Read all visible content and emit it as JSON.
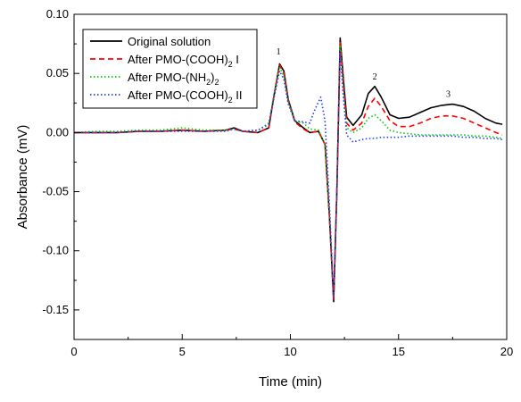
{
  "chart_data": {
    "type": "line",
    "xlabel": "Time (min)",
    "ylabel": "Absorbance (mV)",
    "xlim": [
      0,
      20
    ],
    "ylim": [
      -0.175,
      0.1
    ],
    "x_ticks": [
      0,
      5,
      10,
      15,
      20
    ],
    "x_tick_labels": [
      "0",
      "5",
      "10",
      "15",
      "20"
    ],
    "y_ticks": [
      0.1,
      0.05,
      0.0,
      -0.05,
      -0.1,
      -0.15
    ],
    "y_tick_labels": [
      "0.10",
      "0.05",
      "0.00",
      "-0.05",
      "-0.10",
      "-0.15"
    ],
    "grid": false,
    "legend_position": "top-left",
    "series": [
      {
        "name_parts": [
          "Original solution"
        ],
        "color": "#000000",
        "style": "solid",
        "points": [
          [
            0,
            0.0
          ],
          [
            1.0,
            0.0
          ],
          [
            2.0,
            0.0
          ],
          [
            3.0,
            0.001
          ],
          [
            4.0,
            0.001
          ],
          [
            5.0,
            0.002
          ],
          [
            6.0,
            0.001
          ],
          [
            7.0,
            0.002
          ],
          [
            7.4,
            0.004
          ],
          [
            7.8,
            0.001
          ],
          [
            8.5,
            0.0
          ],
          [
            9.0,
            0.004
          ],
          [
            9.25,
            0.032
          ],
          [
            9.5,
            0.058
          ],
          [
            9.7,
            0.052
          ],
          [
            9.9,
            0.028
          ],
          [
            10.2,
            0.01
          ],
          [
            10.6,
            0.004
          ],
          [
            10.9,
            0.0
          ],
          [
            11.3,
            0.001
          ],
          [
            11.6,
            -0.01
          ],
          [
            11.8,
            -0.07
          ],
          [
            12.0,
            -0.143
          ],
          [
            12.15,
            -0.05
          ],
          [
            12.3,
            0.08
          ],
          [
            12.45,
            0.045
          ],
          [
            12.6,
            0.013
          ],
          [
            12.9,
            0.006
          ],
          [
            13.3,
            0.015
          ],
          [
            13.6,
            0.033
          ],
          [
            13.9,
            0.039
          ],
          [
            14.2,
            0.03
          ],
          [
            14.6,
            0.015
          ],
          [
            15.0,
            0.012
          ],
          [
            15.5,
            0.013
          ],
          [
            16.0,
            0.017
          ],
          [
            16.5,
            0.021
          ],
          [
            17.0,
            0.023
          ],
          [
            17.5,
            0.024
          ],
          [
            18.0,
            0.022
          ],
          [
            18.5,
            0.018
          ],
          [
            19.0,
            0.012
          ],
          [
            19.5,
            0.008
          ],
          [
            19.8,
            0.007
          ]
        ]
      },
      {
        "name_parts": [
          "After PMO-(COOH)",
          "2",
          " I"
        ],
        "color": "#ff0000",
        "style": "dash",
        "points": [
          [
            0,
            0.0
          ],
          [
            1.0,
            0.0
          ],
          [
            2.0,
            0.0
          ],
          [
            3.0,
            0.001
          ],
          [
            4.0,
            0.001
          ],
          [
            5.0,
            0.002
          ],
          [
            6.0,
            0.001
          ],
          [
            7.0,
            0.002
          ],
          [
            7.4,
            0.003
          ],
          [
            7.8,
            0.001
          ],
          [
            8.5,
            0.0
          ],
          [
            9.0,
            0.004
          ],
          [
            9.25,
            0.032
          ],
          [
            9.5,
            0.057
          ],
          [
            9.7,
            0.05
          ],
          [
            9.9,
            0.027
          ],
          [
            10.2,
            0.009
          ],
          [
            10.6,
            0.003
          ],
          [
            10.9,
            0.0
          ],
          [
            11.3,
            0.001
          ],
          [
            11.6,
            -0.01
          ],
          [
            11.8,
            -0.07
          ],
          [
            12.0,
            -0.142
          ],
          [
            12.15,
            -0.05
          ],
          [
            12.3,
            0.077
          ],
          [
            12.45,
            0.04
          ],
          [
            12.6,
            0.008
          ],
          [
            12.9,
            0.002
          ],
          [
            13.3,
            0.008
          ],
          [
            13.6,
            0.022
          ],
          [
            13.9,
            0.029
          ],
          [
            14.2,
            0.022
          ],
          [
            14.6,
            0.01
          ],
          [
            15.0,
            0.005
          ],
          [
            15.5,
            0.005
          ],
          [
            16.0,
            0.008
          ],
          [
            16.5,
            0.012
          ],
          [
            17.0,
            0.014
          ],
          [
            17.5,
            0.014
          ],
          [
            18.0,
            0.012
          ],
          [
            18.5,
            0.008
          ],
          [
            19.0,
            0.004
          ],
          [
            19.5,
            0.0
          ],
          [
            19.8,
            -0.002
          ]
        ]
      },
      {
        "name_parts": [
          "After PMO-(NH",
          "2",
          ")",
          "2",
          ""
        ],
        "color": "#00cc00",
        "style": "dot",
        "points": [
          [
            0,
            0.0
          ],
          [
            1.0,
            0.001
          ],
          [
            2.0,
            0.001
          ],
          [
            3.0,
            0.002
          ],
          [
            4.0,
            0.002
          ],
          [
            5.0,
            0.004
          ],
          [
            6.0,
            0.002
          ],
          [
            7.0,
            0.002
          ],
          [
            7.4,
            0.003
          ],
          [
            7.8,
            0.001
          ],
          [
            8.5,
            0.002
          ],
          [
            9.0,
            0.008
          ],
          [
            9.25,
            0.033
          ],
          [
            9.5,
            0.055
          ],
          [
            9.7,
            0.048
          ],
          [
            9.9,
            0.026
          ],
          [
            10.2,
            0.01
          ],
          [
            10.6,
            0.008
          ],
          [
            10.9,
            0.003
          ],
          [
            11.3,
            0.002
          ],
          [
            11.6,
            -0.01
          ],
          [
            11.8,
            -0.07
          ],
          [
            12.0,
            -0.14
          ],
          [
            12.15,
            -0.05
          ],
          [
            12.3,
            0.074
          ],
          [
            12.45,
            0.035
          ],
          [
            12.6,
            0.004
          ],
          [
            12.9,
            0.0
          ],
          [
            13.3,
            0.004
          ],
          [
            13.6,
            0.012
          ],
          [
            13.9,
            0.015
          ],
          [
            14.2,
            0.01
          ],
          [
            14.6,
            0.002
          ],
          [
            15.0,
            0.0
          ],
          [
            15.5,
            -0.001
          ],
          [
            16.0,
            -0.002
          ],
          [
            16.5,
            -0.002
          ],
          [
            17.0,
            -0.002
          ],
          [
            17.5,
            -0.002
          ],
          [
            18.0,
            -0.002
          ],
          [
            18.5,
            -0.003
          ],
          [
            19.0,
            -0.003
          ],
          [
            19.5,
            -0.004
          ],
          [
            19.8,
            -0.005
          ]
        ]
      },
      {
        "name_parts": [
          "After PMO-(COOH)",
          "2",
          " II"
        ],
        "color": "#1f3fff",
        "style": "dot",
        "points": [
          [
            0,
            0.0
          ],
          [
            1.0,
            0.0
          ],
          [
            2.0,
            0.0
          ],
          [
            3.0,
            0.001
          ],
          [
            4.0,
            0.001
          ],
          [
            5.0,
            0.001
          ],
          [
            6.0,
            0.001
          ],
          [
            7.0,
            0.001
          ],
          [
            7.4,
            0.003
          ],
          [
            7.8,
            0.001
          ],
          [
            8.5,
            0.002
          ],
          [
            9.0,
            0.007
          ],
          [
            9.25,
            0.03
          ],
          [
            9.5,
            0.052
          ],
          [
            9.7,
            0.045
          ],
          [
            9.9,
            0.024
          ],
          [
            10.2,
            0.01
          ],
          [
            10.6,
            0.009
          ],
          [
            10.9,
            0.008
          ],
          [
            11.1,
            0.018
          ],
          [
            11.4,
            0.03
          ],
          [
            11.6,
            0.01
          ],
          [
            11.8,
            -0.06
          ],
          [
            12.0,
            -0.14
          ],
          [
            12.15,
            -0.05
          ],
          [
            12.3,
            0.068
          ],
          [
            12.45,
            0.03
          ],
          [
            12.6,
            -0.002
          ],
          [
            12.9,
            -0.008
          ],
          [
            13.3,
            -0.006
          ],
          [
            13.6,
            -0.005
          ],
          [
            13.9,
            -0.005
          ],
          [
            14.2,
            -0.004
          ],
          [
            14.6,
            -0.004
          ],
          [
            15.0,
            -0.004
          ],
          [
            15.5,
            -0.003
          ],
          [
            16.0,
            -0.003
          ],
          [
            16.5,
            -0.003
          ],
          [
            17.0,
            -0.003
          ],
          [
            17.5,
            -0.003
          ],
          [
            18.0,
            -0.004
          ],
          [
            18.5,
            -0.004
          ],
          [
            19.0,
            -0.005
          ],
          [
            19.5,
            -0.005
          ],
          [
            19.8,
            -0.006
          ]
        ]
      }
    ],
    "annotations": [
      {
        "text": "1",
        "x": 9.45,
        "y": 0.066
      },
      {
        "text": "2",
        "x": 13.9,
        "y": 0.045
      },
      {
        "text": "3",
        "x": 17.3,
        "y": 0.03
      }
    ]
  }
}
